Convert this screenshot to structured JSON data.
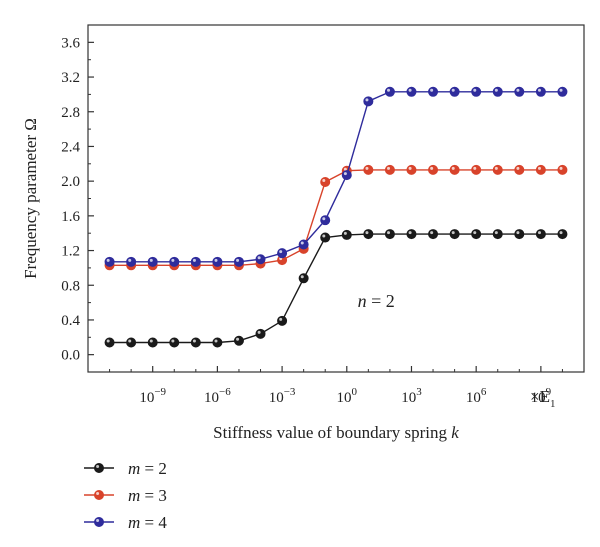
{
  "chart_data": {
    "type": "line",
    "xlabel": "Stiffness value of boundary spring ",
    "xlabel_var": "k",
    "ylabel": "Frequency parameter Ω",
    "x_scale": "log10",
    "x_unit": "×E",
    "x_unit_sub": "1",
    "ylim": [
      -0.2,
      3.8
    ],
    "xlim_exp": [
      -12,
      11
    ],
    "y_ticks": [
      "0.0",
      "0.4",
      "0.8",
      "1.2",
      "1.6",
      "2.0",
      "2.4",
      "2.8",
      "3.2",
      "3.6"
    ],
    "x_tick_exponents": [
      -9,
      -6,
      -3,
      0,
      3,
      6,
      9
    ],
    "annotation": {
      "var": "n",
      "text": " = 2"
    },
    "x": [
      -11,
      -10,
      -9,
      -8,
      -7,
      -6,
      -5,
      -4,
      -3,
      -2,
      -1,
      0,
      1,
      2,
      3,
      4,
      5,
      6,
      7,
      8,
      9,
      10
    ],
    "series": [
      {
        "name": " = 2",
        "var": "m",
        "color": "#1a1a1a",
        "values": [
          0.14,
          0.14,
          0.14,
          0.14,
          0.14,
          0.14,
          0.16,
          0.24,
          0.39,
          0.88,
          1.35,
          1.38,
          1.39,
          1.39,
          1.39,
          1.39,
          1.39,
          1.39,
          1.39,
          1.39,
          1.39,
          1.39
        ]
      },
      {
        "name": " = 3",
        "var": "m",
        "color": "#d8432b",
        "values": [
          1.03,
          1.03,
          1.03,
          1.03,
          1.03,
          1.03,
          1.03,
          1.05,
          1.09,
          1.22,
          1.99,
          2.12,
          2.13,
          2.13,
          2.13,
          2.13,
          2.13,
          2.13,
          2.13,
          2.13,
          2.13,
          2.13
        ]
      },
      {
        "name": " = 4",
        "var": "m",
        "color": "#2f2c9c",
        "values": [
          1.07,
          1.07,
          1.07,
          1.07,
          1.07,
          1.07,
          1.07,
          1.1,
          1.17,
          1.27,
          1.55,
          2.07,
          2.92,
          3.03,
          3.03,
          3.03,
          3.03,
          3.03,
          3.03,
          3.03,
          3.03,
          3.03
        ]
      }
    ],
    "legend_position": "bottom-left"
  }
}
